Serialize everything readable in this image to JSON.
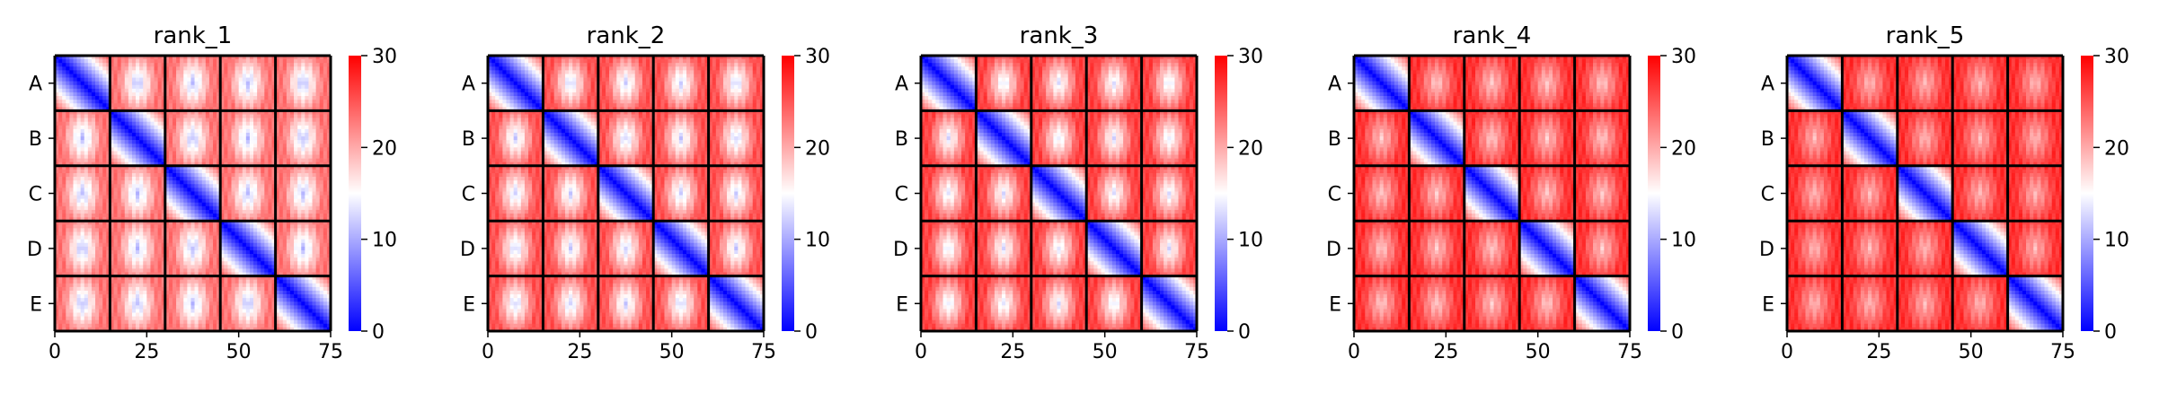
{
  "figure": {
    "colormap": {
      "name": "bwr",
      "low": "#0000ff",
      "mid": "#ffffff",
      "high": "#ff0000"
    },
    "block_labels": [
      "A",
      "B",
      "C",
      "D",
      "E"
    ]
  },
  "chart_data": [
    {
      "type": "heatmap",
      "title": "rank_1",
      "x_ticks": [
        0,
        25,
        50,
        75
      ],
      "y_tick_labels": [
        "A",
        "B",
        "C",
        "D",
        "E"
      ],
      "xlim": [
        0,
        75
      ],
      "ylim": [
        0,
        75
      ],
      "block_size": 15,
      "blocks": 5,
      "colorbar": {
        "min": 0,
        "max": 30,
        "ticks": [
          0,
          10,
          20,
          30
        ]
      },
      "diagonal_block_range": [
        0,
        20
      ],
      "off_diagonal_center": 10,
      "off_diagonal_edge": 22
    },
    {
      "type": "heatmap",
      "title": "rank_2",
      "x_ticks": [
        0,
        25,
        50,
        75
      ],
      "y_tick_labels": [
        "A",
        "B",
        "C",
        "D",
        "E"
      ],
      "xlim": [
        0,
        75
      ],
      "ylim": [
        0,
        75
      ],
      "block_size": 15,
      "blocks": 5,
      "colorbar": {
        "min": 0,
        "max": 30,
        "ticks": [
          0,
          10,
          20,
          30
        ]
      },
      "diagonal_block_range": [
        0,
        20
      ],
      "off_diagonal_center": 11,
      "off_diagonal_edge": 24
    },
    {
      "type": "heatmap",
      "title": "rank_3",
      "x_ticks": [
        0,
        25,
        50,
        75
      ],
      "y_tick_labels": [
        "A",
        "B",
        "C",
        "D",
        "E"
      ],
      "xlim": [
        0,
        75
      ],
      "ylim": [
        0,
        75
      ],
      "block_size": 15,
      "blocks": 5,
      "colorbar": {
        "min": 0,
        "max": 30,
        "ticks": [
          0,
          10,
          20,
          30
        ]
      },
      "diagonal_block_range": [
        0,
        20
      ],
      "off_diagonal_center": 12,
      "off_diagonal_edge": 25
    },
    {
      "type": "heatmap",
      "title": "rank_4",
      "x_ticks": [
        0,
        25,
        50,
        75
      ],
      "y_tick_labels": [
        "A",
        "B",
        "C",
        "D",
        "E"
      ],
      "xlim": [
        0,
        75
      ],
      "ylim": [
        0,
        75
      ],
      "block_size": 15,
      "blocks": 5,
      "colorbar": {
        "min": 0,
        "max": 30,
        "ticks": [
          0,
          10,
          20,
          30
        ]
      },
      "diagonal_block_range": [
        0,
        20
      ],
      "off_diagonal_center": 17,
      "off_diagonal_edge": 26
    },
    {
      "type": "heatmap",
      "title": "rank_5",
      "x_ticks": [
        0,
        25,
        50,
        75
      ],
      "y_tick_labels": [
        "A",
        "B",
        "C",
        "D",
        "E"
      ],
      "xlim": [
        0,
        75
      ],
      "ylim": [
        0,
        75
      ],
      "block_size": 15,
      "blocks": 5,
      "colorbar": {
        "min": 0,
        "max": 30,
        "ticks": [
          0,
          10,
          20,
          30
        ]
      },
      "diagonal_block_range": [
        0,
        20
      ],
      "off_diagonal_center": 18,
      "off_diagonal_edge": 26
    }
  ]
}
